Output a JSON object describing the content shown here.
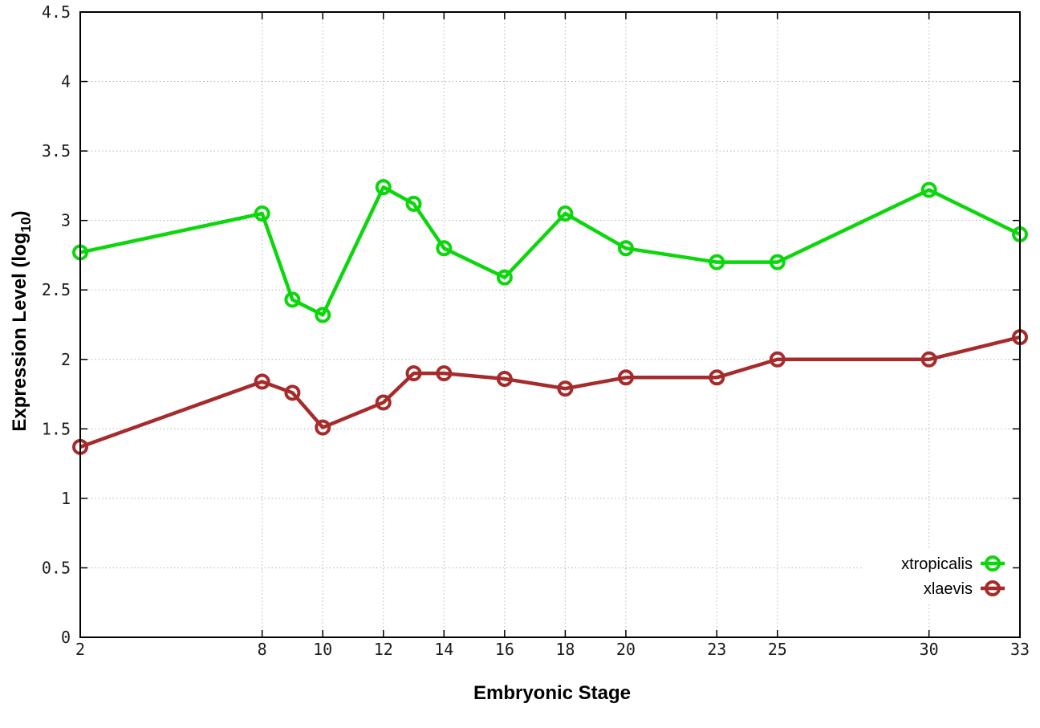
{
  "chart_data": {
    "type": "line",
    "title": "",
    "xlabel": "Embryonic Stage",
    "ylabel": "Expression Level (log10)",
    "ylabel_parts": {
      "pre": "Expression Level (log",
      "sub": "10",
      "post": ")"
    },
    "xlim": [
      2,
      33
    ],
    "ylim": [
      0,
      4.5
    ],
    "x_ticks": [
      2,
      8,
      10,
      12,
      14,
      16,
      18,
      20,
      23,
      25,
      30,
      33
    ],
    "y_ticks": [
      0,
      0.5,
      1,
      1.5,
      2,
      2.5,
      3,
      3.5,
      4,
      4.5
    ],
    "grid": true,
    "legend_position": "inside-bottom-right",
    "x": [
      2,
      8,
      9,
      10,
      12,
      13,
      14,
      16,
      18,
      20,
      23,
      25,
      30,
      33
    ],
    "series": [
      {
        "name": "xtropicalis",
        "color": "#0cd60c",
        "values": [
          2.77,
          3.05,
          2.43,
          2.32,
          3.24,
          3.12,
          2.8,
          2.59,
          3.05,
          2.8,
          2.7,
          2.7,
          3.22,
          2.9
        ]
      },
      {
        "name": "xlaevis",
        "color": "#a62b2b",
        "values": [
          1.37,
          1.84,
          1.76,
          1.51,
          1.69,
          1.9,
          1.9,
          1.86,
          1.79,
          1.87,
          1.87,
          2.0,
          2.0,
          2.16
        ]
      }
    ],
    "style": {
      "grid_color": "#b5b5b5",
      "axis_color": "#000000",
      "tick_label_color": "#1c1c1c",
      "background": "#ffffff",
      "line_width": 4.5,
      "marker_radius": 8,
      "marker_stroke": 4
    }
  }
}
